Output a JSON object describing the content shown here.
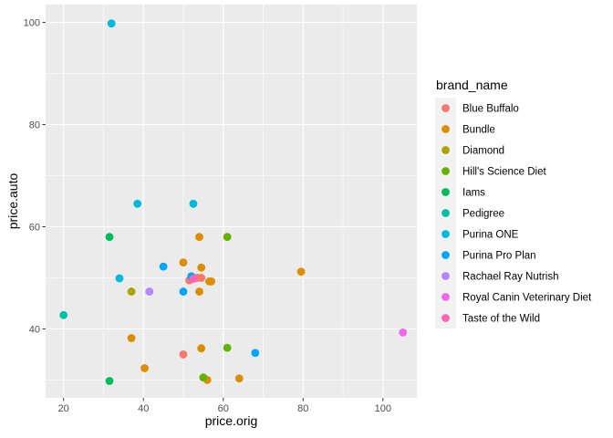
{
  "chart_data": {
    "type": "scatter",
    "xlabel": "price.orig",
    "ylabel": "price.auto",
    "xlim": [
      15.5,
      108.5
    ],
    "ylim": [
      26.5,
      103.5
    ],
    "xticks": [
      20,
      40,
      60,
      80,
      100
    ],
    "yticks": [
      40,
      60,
      80,
      100
    ],
    "grid": true,
    "legend": {
      "title": "brand_name",
      "placement": "right"
    },
    "series": [
      {
        "name": "Blue Buffalo",
        "color": "#F8766D",
        "points": [
          [
            50.0,
            35.0
          ],
          [
            51.5,
            49.5
          ],
          [
            53.5,
            50.0
          ],
          [
            54.5,
            50.0
          ]
        ]
      },
      {
        "name": "Bundle",
        "color": "#DB8E00",
        "points": [
          [
            37.0,
            38.2
          ],
          [
            40.3,
            32.3
          ],
          [
            50.0,
            53.0
          ],
          [
            54.0,
            58.0
          ],
          [
            54.5,
            52.0
          ],
          [
            54.0,
            47.3
          ],
          [
            54.5,
            36.2
          ],
          [
            56.0,
            30.0
          ],
          [
            56.5,
            49.3
          ],
          [
            57.0,
            49.3
          ],
          [
            64.0,
            30.3
          ],
          [
            79.5,
            51.2
          ]
        ]
      },
      {
        "name": "Diamond",
        "color": "#AEA200",
        "points": [
          [
            37.0,
            47.3
          ]
        ]
      },
      {
        "name": "Hill's Science Diet",
        "color": "#64B200",
        "points": [
          [
            55.0,
            30.5
          ],
          [
            61.0,
            58.0
          ],
          [
            61.0,
            36.3
          ]
        ]
      },
      {
        "name": "Iams",
        "color": "#00BD5C",
        "points": [
          [
            31.5,
            58.0
          ],
          [
            31.5,
            29.8
          ]
        ]
      },
      {
        "name": "Pedigree",
        "color": "#00C1A7",
        "points": [
          [
            20.0,
            42.7
          ]
        ]
      },
      {
        "name": "Purina ONE",
        "color": "#00BADE",
        "points": [
          [
            32.0,
            99.8
          ],
          [
            38.5,
            64.5
          ],
          [
            52.5,
            64.5
          ],
          [
            34.0,
            49.9
          ]
        ]
      },
      {
        "name": "Purina Pro Plan",
        "color": "#00A6FF",
        "points": [
          [
            45.0,
            52.2
          ],
          [
            50.0,
            47.3
          ],
          [
            52.0,
            50.3
          ],
          [
            68.0,
            35.3
          ]
        ]
      },
      {
        "name": "Rachael Ray Nutrish",
        "color": "#B385FF",
        "points": [
          [
            41.5,
            47.3
          ]
        ]
      },
      {
        "name": "Royal Canin Veterinary Diet",
        "color": "#EF67EB",
        "points": [
          [
            105.0,
            39.3
          ]
        ]
      },
      {
        "name": "Taste of the Wild",
        "color": "#FF63B6",
        "points": [
          [
            52.5,
            49.8
          ]
        ]
      }
    ]
  }
}
